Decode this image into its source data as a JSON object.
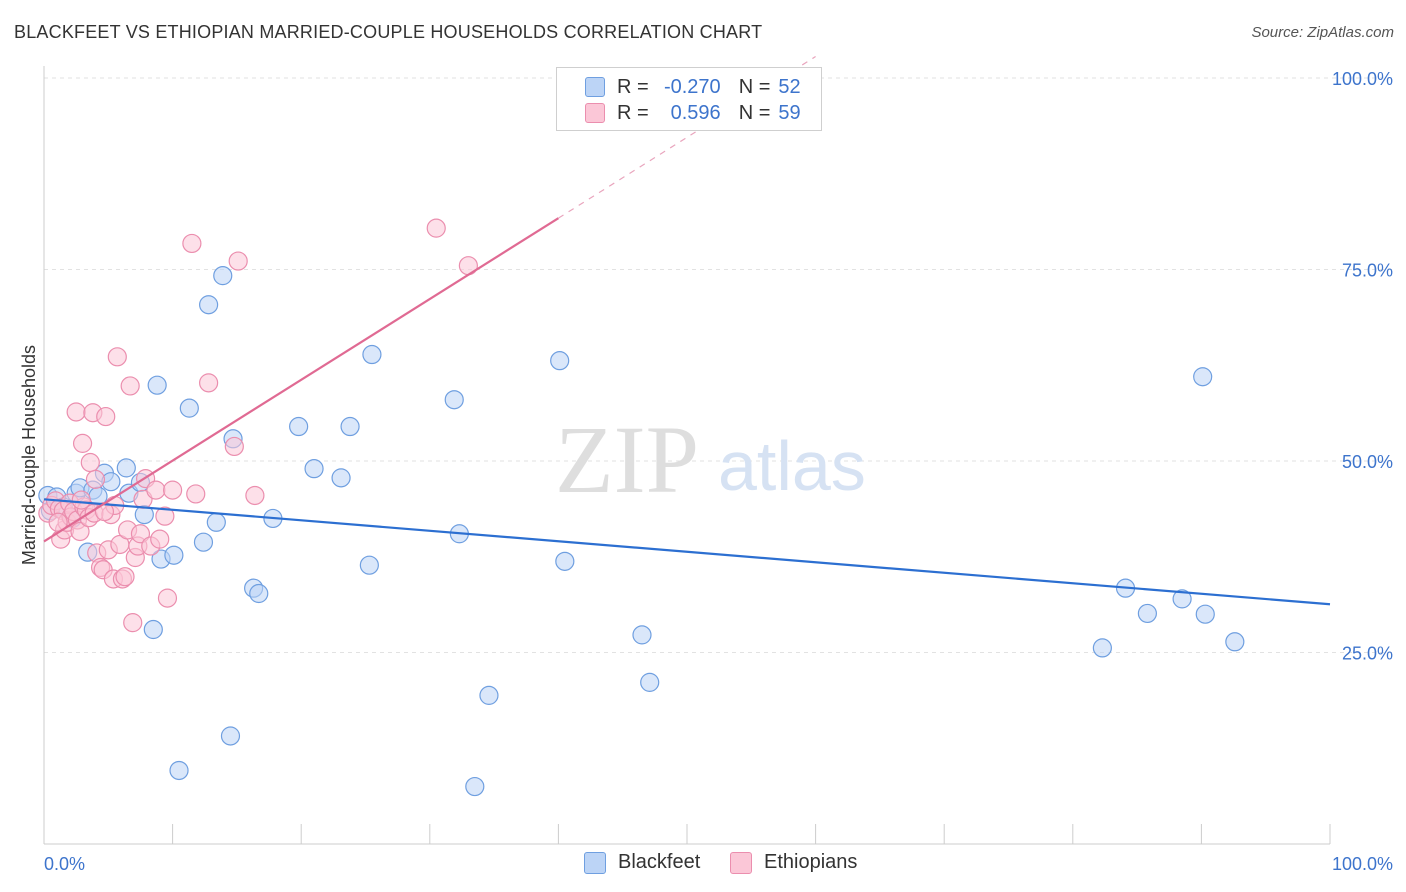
{
  "header": {
    "title": "BLACKFEET VS ETHIOPIAN MARRIED-COUPLE HOUSEHOLDS CORRELATION CHART",
    "source": "Source: ZipAtlas.com"
  },
  "watermark": {
    "zip": "ZIP",
    "atlas": "atlas"
  },
  "legend": {
    "rows": [
      {
        "r_label": "R =",
        "r_value": "-0.270",
        "n_label": "N =",
        "n_value": "52",
        "color": "#6f9fe0"
      },
      {
        "r_label": "R =",
        "r_value": "0.596",
        "n_label": "N =",
        "n_value": "59",
        "color": "#eb8eae"
      }
    ]
  },
  "bottom_legend": {
    "items": [
      {
        "label": "Blackfeet",
        "color": "#6f9fe0"
      },
      {
        "label": "Ethiopians",
        "color": "#eb8eae"
      }
    ]
  },
  "chart_data": {
    "type": "scatter",
    "title": "BLACKFEET VS ETHIOPIAN MARRIED-COUPLE HOUSEHOLDS CORRELATION CHART",
    "xlabel": "",
    "ylabel": "Married-couple Households",
    "xlim": [
      0,
      100
    ],
    "ylim": [
      0,
      100
    ],
    "x_tick_labels": [
      "0.0%",
      "100.0%"
    ],
    "y_tick_labels": [
      "25.0%",
      "50.0%",
      "75.0%",
      "100.0%"
    ],
    "y_ticks": [
      25,
      50,
      75,
      100
    ],
    "grid": true,
    "legend_position": "top-center",
    "series": [
      {
        "name": "Blackfeet",
        "color": "#6f9fe0",
        "fill": "#bcd4f6",
        "trend": {
          "x0": 0,
          "y0": 45.0,
          "x1": 100,
          "y1": 31.3
        },
        "points": [
          [
            0.3,
            45.5
          ],
          [
            0.5,
            43.5
          ],
          [
            1.0,
            45.3
          ],
          [
            1.5,
            44.0
          ],
          [
            2.2,
            42.5
          ],
          [
            2.5,
            45.8
          ],
          [
            2.8,
            46.5
          ],
          [
            3.4,
            38.1
          ],
          [
            3.8,
            46.2
          ],
          [
            4.2,
            45.4
          ],
          [
            4.7,
            48.4
          ],
          [
            5.2,
            47.3
          ],
          [
            6.4,
            49.1
          ],
          [
            6.6,
            45.8
          ],
          [
            7.5,
            47.2
          ],
          [
            7.8,
            43.0
          ],
          [
            8.5,
            28.0
          ],
          [
            8.8,
            59.9
          ],
          [
            9.1,
            37.2
          ],
          [
            10.1,
            37.7
          ],
          [
            10.5,
            9.6
          ],
          [
            11.3,
            56.9
          ],
          [
            12.4,
            39.4
          ],
          [
            12.8,
            70.4
          ],
          [
            13.4,
            42.0
          ],
          [
            13.9,
            74.2
          ],
          [
            14.5,
            14.1
          ],
          [
            14.7,
            52.9
          ],
          [
            16.3,
            33.4
          ],
          [
            16.7,
            32.7
          ],
          [
            17.8,
            42.5
          ],
          [
            19.8,
            54.5
          ],
          [
            21.0,
            49.0
          ],
          [
            23.1,
            47.8
          ],
          [
            23.8,
            54.5
          ],
          [
            25.3,
            36.4
          ],
          [
            25.5,
            63.9
          ],
          [
            31.9,
            58.0
          ],
          [
            32.3,
            40.5
          ],
          [
            33.5,
            7.5
          ],
          [
            34.6,
            19.4
          ],
          [
            40.1,
            63.1
          ],
          [
            40.5,
            36.9
          ],
          [
            46.5,
            27.3
          ],
          [
            47.1,
            21.1
          ],
          [
            82.3,
            25.6
          ],
          [
            84.1,
            33.4
          ],
          [
            85.8,
            30.1
          ],
          [
            88.5,
            32.0
          ],
          [
            90.1,
            61.0
          ],
          [
            90.3,
            30.0
          ],
          [
            92.6,
            26.4
          ]
        ]
      },
      {
        "name": "Ethiopians",
        "color": "#eb8eae",
        "fill": "#fbc7d7",
        "trend": {
          "x0": 0,
          "y0": 39.5,
          "x1": 40,
          "y1": 81.7,
          "dash_to_x": 60,
          "dash_to_y": 102.8
        },
        "points": [
          [
            0.3,
            43.2
          ],
          [
            0.6,
            44.2
          ],
          [
            0.9,
            44.8
          ],
          [
            1.2,
            43.8
          ],
          [
            1.3,
            39.8
          ],
          [
            1.5,
            43.5
          ],
          [
            1.6,
            41.0
          ],
          [
            1.8,
            42.0
          ],
          [
            2.0,
            44.5
          ],
          [
            2.1,
            42.7
          ],
          [
            2.3,
            43.4
          ],
          [
            2.5,
            56.4
          ],
          [
            2.6,
            42.3
          ],
          [
            2.8,
            40.8
          ],
          [
            3.0,
            52.3
          ],
          [
            3.1,
            44.0
          ],
          [
            3.3,
            43.6
          ],
          [
            3.5,
            42.6
          ],
          [
            3.6,
            49.8
          ],
          [
            3.8,
            56.3
          ],
          [
            3.9,
            43.2
          ],
          [
            4.0,
            47.6
          ],
          [
            4.1,
            38.0
          ],
          [
            4.4,
            36.1
          ],
          [
            4.6,
            35.8
          ],
          [
            4.8,
            55.8
          ],
          [
            5.0,
            38.4
          ],
          [
            5.2,
            43.0
          ],
          [
            5.4,
            34.6
          ],
          [
            5.5,
            44.2
          ],
          [
            5.7,
            63.6
          ],
          [
            5.9,
            39.1
          ],
          [
            6.1,
            34.6
          ],
          [
            6.3,
            34.9
          ],
          [
            6.5,
            41.0
          ],
          [
            6.7,
            59.8
          ],
          [
            6.9,
            28.9
          ],
          [
            7.1,
            37.4
          ],
          [
            7.3,
            38.9
          ],
          [
            7.5,
            40.5
          ],
          [
            7.7,
            45.0
          ],
          [
            7.9,
            47.7
          ],
          [
            8.3,
            38.9
          ],
          [
            8.7,
            46.2
          ],
          [
            9.0,
            39.8
          ],
          [
            9.4,
            42.8
          ],
          [
            9.6,
            32.1
          ],
          [
            10.0,
            46.2
          ],
          [
            11.5,
            78.4
          ],
          [
            11.8,
            45.7
          ],
          [
            12.8,
            60.2
          ],
          [
            14.8,
            51.9
          ],
          [
            15.1,
            76.1
          ],
          [
            16.4,
            45.5
          ],
          [
            30.5,
            80.4
          ],
          [
            33.0,
            75.5
          ],
          [
            2.9,
            44.9
          ],
          [
            4.7,
            43.4
          ],
          [
            1.1,
            42.0
          ]
        ]
      }
    ]
  }
}
